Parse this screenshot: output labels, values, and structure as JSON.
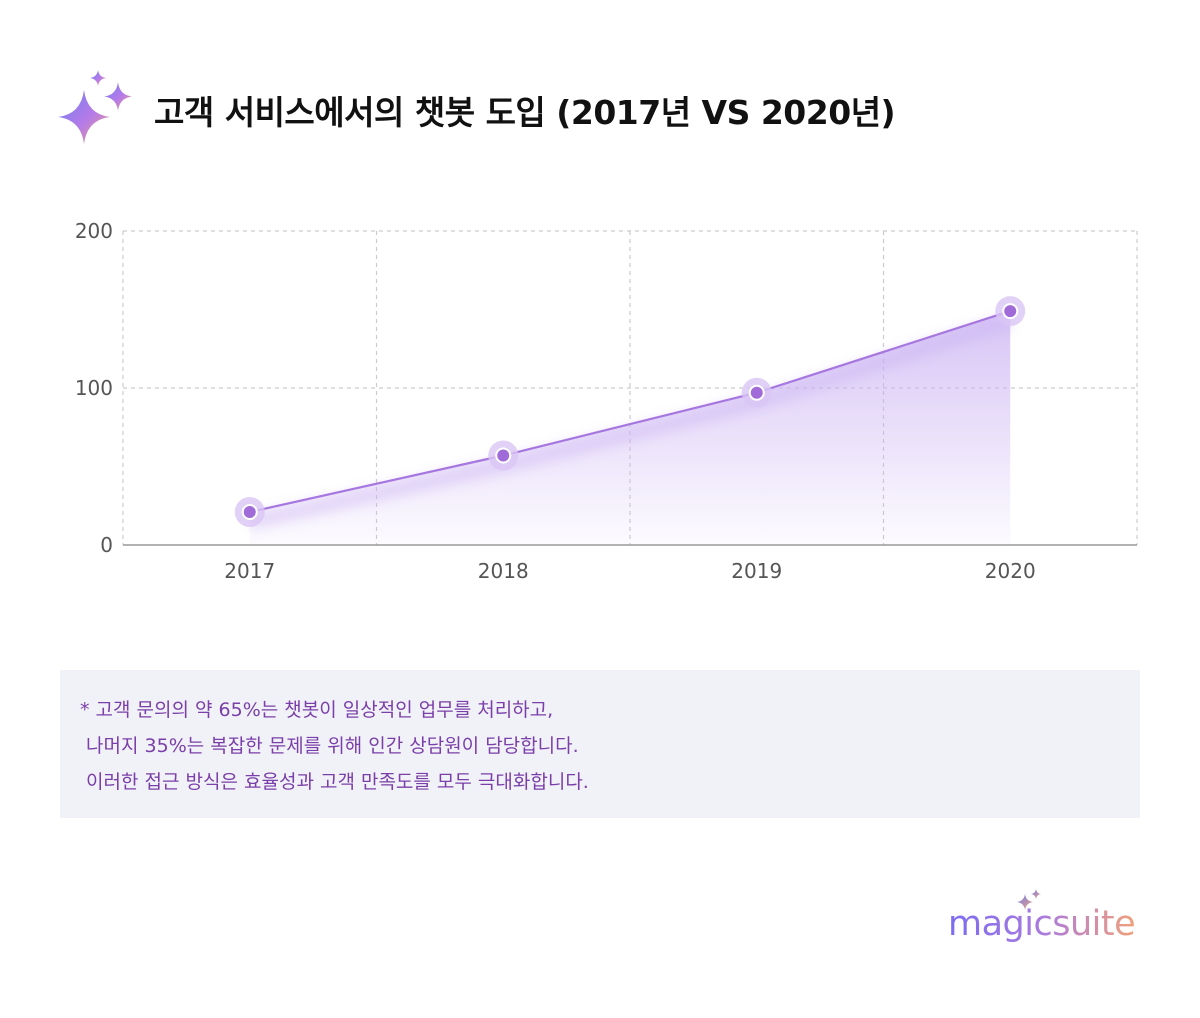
{
  "header": {
    "title": "고객 서비스에서의 챗봇 도입 (2017년 VS 2020년)",
    "icon": "sparkle-icon"
  },
  "chart_data": {
    "type": "area",
    "title": "고객 서비스에서의 챗봇 도입 (2017년 VS 2020년)",
    "categories": [
      "2017",
      "2018",
      "2019",
      "2020"
    ],
    "series": [
      {
        "values": [
          21,
          57,
          97,
          149
        ]
      }
    ],
    "yticks": [
      "0",
      "100",
      "200"
    ],
    "ylim": [
      0,
      200
    ],
    "xlabel": "",
    "ylabel": "",
    "grid": true,
    "legend": "none",
    "colors": {
      "line": "#a777e0",
      "marker": "#a06ad8",
      "fill": "#c9b0f2",
      "grid": "#cccccc",
      "axis": "#999999"
    }
  },
  "note": {
    "lines": [
      "* 고객 문의의 약 65%는 챗봇이 일상적인 업무를 처리하고,",
      " 나머지 35%는 복잡한 문제를 위해 인간 상담원이 담당합니다.",
      " 이러한 접근 방식은 효율성과 고객 만족도를 모두 극대화합니다."
    ]
  },
  "brand": {
    "name": "magicsuite",
    "icon": "sparkle-icon"
  }
}
